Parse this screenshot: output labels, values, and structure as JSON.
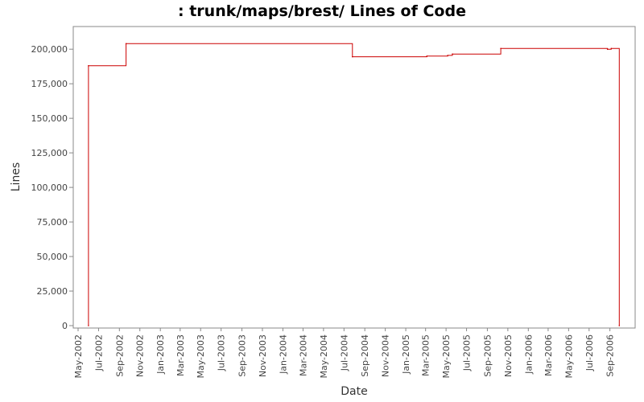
{
  "chart_data": {
    "type": "line",
    "title": ": trunk/maps/brest/ Lines of Code",
    "xlabel": "Date",
    "ylabel": "Lines",
    "ylim": [
      0,
      210000
    ],
    "xlim": [
      "2002-05-01",
      "2006-10-15"
    ],
    "grid": false,
    "legend": "none",
    "line_style": "step",
    "series_color": "#cc0000",
    "yticks": [
      0,
      25000,
      50000,
      75000,
      100000,
      125000,
      150000,
      175000,
      200000
    ],
    "ytick_labels": [
      "0",
      "25,000",
      "50,000",
      "75,000",
      "100,000",
      "125,000",
      "150,000",
      "175,000",
      "200,000"
    ],
    "xticks": [
      "2002-05-01",
      "2002-07-01",
      "2002-09-01",
      "2002-11-01",
      "2003-01-01",
      "2003-03-01",
      "2003-05-01",
      "2003-07-01",
      "2003-09-01",
      "2003-11-01",
      "2004-01-01",
      "2004-03-01",
      "2004-05-01",
      "2004-07-01",
      "2004-09-01",
      "2004-11-01",
      "2005-01-01",
      "2005-03-01",
      "2005-05-01",
      "2005-07-01",
      "2005-09-01",
      "2005-11-01",
      "2006-01-01",
      "2006-03-01",
      "2006-05-01",
      "2006-07-01",
      "2006-09-01"
    ],
    "xtick_labels": [
      "May-2002",
      "Jul-2002",
      "Sep-2002",
      "Nov-2002",
      "Jan-2003",
      "Mar-2003",
      "May-2003",
      "Jul-2003",
      "Sep-2003",
      "Nov-2003",
      "Jan-2004",
      "Mar-2004",
      "May-2004",
      "Jul-2004",
      "Sep-2004",
      "Nov-2004",
      "Jan-2005",
      "Mar-2005",
      "May-2005",
      "Jul-2005",
      "Sep-2005",
      "Nov-2005",
      "Jan-2006",
      "Mar-2006",
      "May-2006",
      "Jul-2006",
      "Sep-2006"
    ],
    "series": [
      {
        "x": [
          "2002-06-01",
          "2002-06-01",
          "2002-09-21",
          "2004-07-26",
          "2005-03-05",
          "2005-05-06",
          "2005-05-20",
          "2005-10-11",
          "2006-08-25",
          "2006-09-05",
          "2006-09-29"
        ],
        "values": [
          0,
          188000,
          204000,
          194500,
          195000,
          195500,
          196500,
          200500,
          200000,
          200500,
          0
        ]
      }
    ]
  }
}
